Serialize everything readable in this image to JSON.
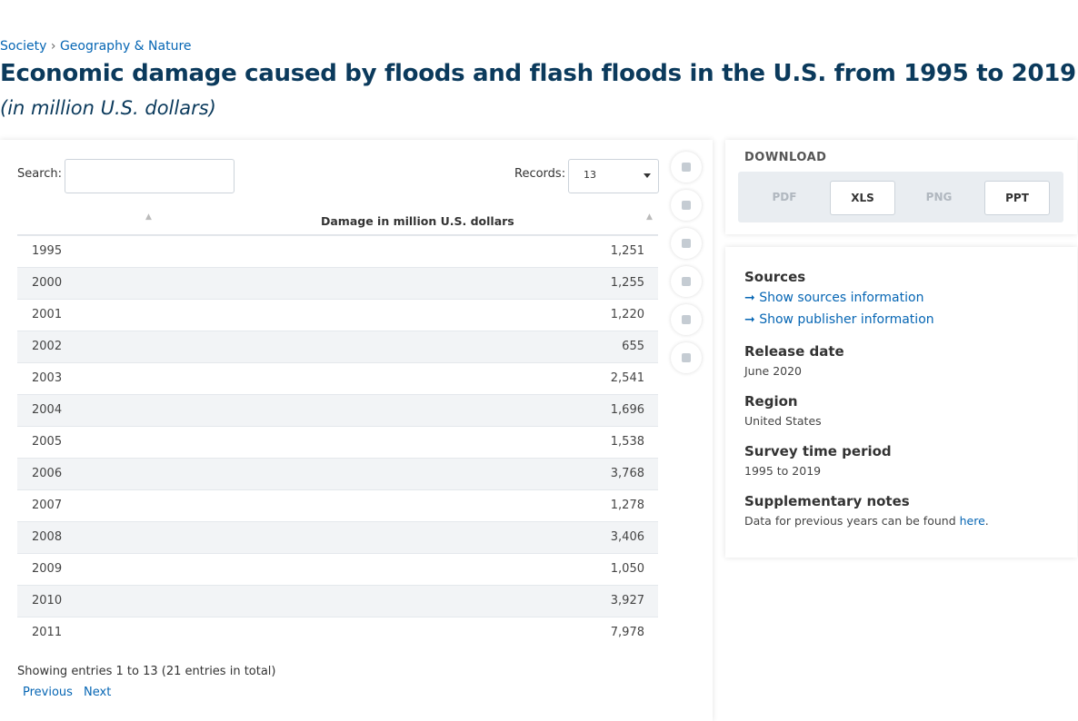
{
  "breadcrumb": [
    "Society",
    "Geography & Nature"
  ],
  "title": "Economic damage caused by floods and flash floods in the U.S. from 1995 to 2019",
  "subtitle": "(in million U.S. dollars)",
  "controls": {
    "search_label": "Search:",
    "records_label": "Records:",
    "records_value": "13"
  },
  "table": {
    "header": [
      "",
      "Damage in million U.S. dollars"
    ],
    "rows": [
      [
        "1995",
        "1,251"
      ],
      [
        "2000",
        "1,255"
      ],
      [
        "2001",
        "1,220"
      ],
      [
        "2002",
        "655"
      ],
      [
        "2003",
        "2,541"
      ],
      [
        "2004",
        "1,696"
      ],
      [
        "2005",
        "1,538"
      ],
      [
        "2006",
        "3,768"
      ],
      [
        "2007",
        "1,278"
      ],
      [
        "2008",
        "3,406"
      ],
      [
        "2009",
        "1,050"
      ],
      [
        "2010",
        "3,927"
      ],
      [
        "2011",
        "7,978"
      ]
    ]
  },
  "pagination": {
    "info": "Showing entries 1 to 13 (21 entries in total)",
    "previous": "Previous",
    "next": "Next"
  },
  "download": {
    "title": "DOWNLOAD",
    "buttons": [
      "PDF",
      "XLS",
      "PNG",
      "PPT"
    ]
  },
  "info": {
    "sources_title": "Sources",
    "sources_link": "Show sources information",
    "publisher_link": "Show publisher information",
    "items": [
      {
        "label": "Release date",
        "value": "June 2020"
      },
      {
        "label": "Region",
        "value": "United States"
      },
      {
        "label": "Survey time period",
        "value": "1995 to 2019"
      }
    ],
    "notes_title": "Supplementary notes",
    "notes_text": "Data for previous years can be found ",
    "notes_link": "here",
    "notes_end": "."
  }
}
